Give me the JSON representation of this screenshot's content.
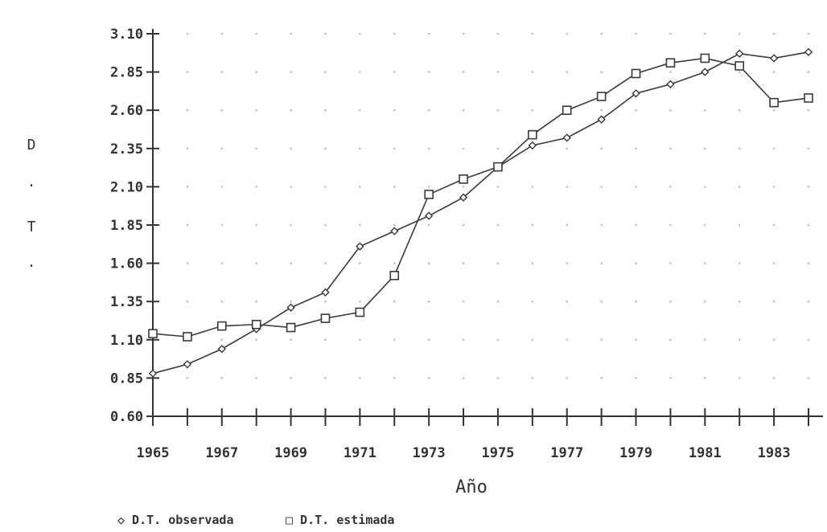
{
  "chart_data": {
    "type": "line",
    "title": "",
    "xlabel": "Año",
    "ylabel_chars": [
      "D",
      ".",
      "T",
      "."
    ],
    "x": [
      1965,
      1966,
      1967,
      1968,
      1969,
      1970,
      1971,
      1972,
      1973,
      1974,
      1975,
      1976,
      1977,
      1978,
      1979,
      1980,
      1981,
      1982,
      1983,
      1984
    ],
    "x_tick_labels": [
      "1965",
      "1967",
      "1969",
      "1971",
      "1973",
      "1975",
      "1977",
      "1979",
      "1981",
      "1983"
    ],
    "x_tick_values": [
      1965,
      1967,
      1969,
      1971,
      1973,
      1975,
      1977,
      1979,
      1981,
      1983
    ],
    "y_tick_labels": [
      "0.60",
      "0.85",
      "1.10",
      "1.35",
      "1.60",
      "1.85",
      "2.10",
      "2.35",
      "2.60",
      "2.85",
      "3.10"
    ],
    "y_tick_values": [
      0.6,
      0.85,
      1.1,
      1.35,
      1.6,
      1.85,
      2.1,
      2.35,
      2.6,
      2.85,
      3.1
    ],
    "xlim": [
      1965,
      1984
    ],
    "ylim": [
      0.6,
      3.1
    ],
    "grid": "dotted",
    "legend_position": "bottom-left",
    "series": [
      {
        "name": "D.T. observada",
        "marker": "diamond",
        "values": [
          0.88,
          0.94,
          1.04,
          1.17,
          1.31,
          1.41,
          1.71,
          1.81,
          1.91,
          2.03,
          2.23,
          2.37,
          2.42,
          2.54,
          2.71,
          2.77,
          2.85,
          2.97,
          2.94,
          2.98
        ]
      },
      {
        "name": "D.T. estimada",
        "marker": "square",
        "values": [
          1.14,
          1.12,
          1.19,
          1.2,
          1.18,
          1.24,
          1.28,
          1.52,
          2.05,
          2.15,
          2.23,
          2.44,
          2.6,
          2.69,
          2.84,
          2.91,
          2.94,
          2.89,
          2.65,
          2.68
        ]
      }
    ],
    "legend": [
      "◇ D.T. observada",
      "□ D.T. estimada"
    ],
    "colors": {
      "line": "#3a3a3a",
      "grid": "#bdbdbd",
      "axis": "#333333"
    }
  }
}
